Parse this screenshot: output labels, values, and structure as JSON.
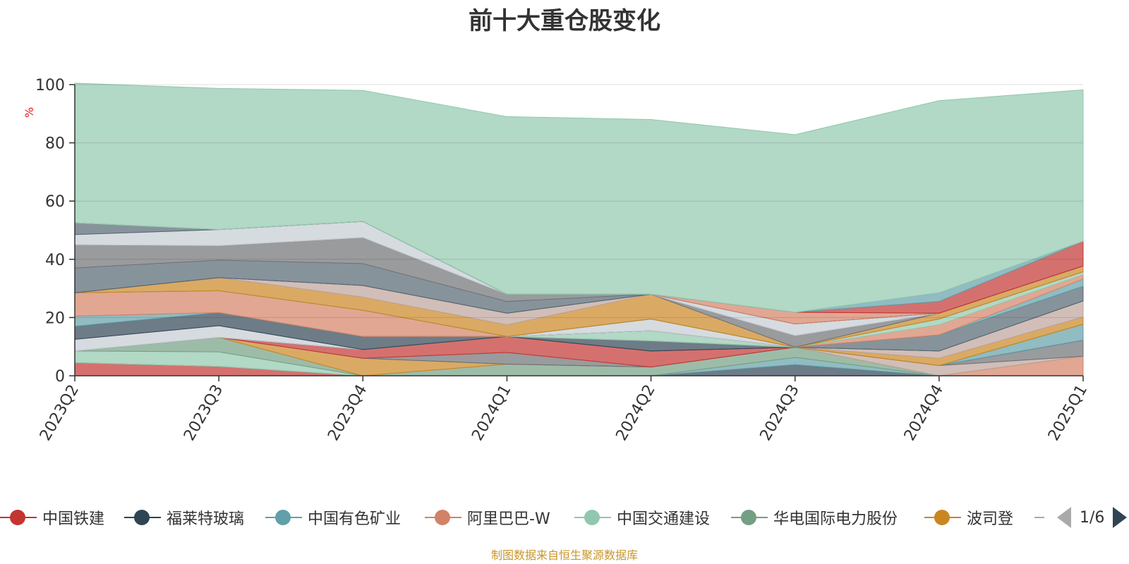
{
  "title": "前十大重仓股变化",
  "unit_label": "%",
  "footer": "制图数据来自恒生聚源数据库",
  "legend": {
    "items": [
      {
        "name": "中国铁建",
        "color": "#c23531"
      },
      {
        "name": "福莱特玻璃",
        "color": "#2f4554"
      },
      {
        "name": "中国有色矿业",
        "color": "#61a0a8"
      },
      {
        "name": "阿里巴巴-W",
        "color": "#d48265"
      },
      {
        "name": "中国交通建设",
        "color": "#91c7ae"
      },
      {
        "name": "华电国际电力股份",
        "color": "#749f83"
      },
      {
        "name": "波司登",
        "color": "#ca8622"
      }
    ],
    "page_text": "1/6"
  },
  "chart_data": {
    "type": "area",
    "stacked": true,
    "x": [
      "2023Q2",
      "2023Q3",
      "2023Q4",
      "2024Q1",
      "2024Q2",
      "2024Q3",
      "2024Q4",
      "2025Q1"
    ],
    "ylim": [
      0,
      100
    ],
    "yticks": [
      0,
      20,
      40,
      60,
      80,
      100
    ],
    "ylabel": "%",
    "grid": true,
    "series": [
      {
        "color": "#c23531",
        "values": [
          4.5,
          3.2,
          0,
          0,
          0,
          0,
          0,
          0
        ]
      },
      {
        "color": "#2f4554",
        "values": [
          0,
          0,
          0,
          0,
          0,
          3.8,
          0,
          0
        ]
      },
      {
        "color": "#61a0a8",
        "values": [
          0,
          0,
          0,
          0,
          0,
          2.5,
          0,
          0
        ]
      },
      {
        "color": "#d48265",
        "values": [
          0,
          0,
          0,
          0,
          0,
          0,
          0,
          6.7
        ]
      },
      {
        "color": "#91c7ae",
        "values": [
          4,
          5,
          0,
          0,
          0,
          0,
          0,
          0
        ]
      },
      {
        "color": "#749f83",
        "values": [
          0,
          5,
          0,
          4,
          3,
          3.5,
          0,
          0
        ]
      },
      {
        "color": "#ca8622",
        "values": [
          0,
          0,
          6,
          0,
          0,
          0,
          0,
          0
        ]
      },
      {
        "color": "#bda29a",
        "values": [
          0,
          0,
          0,
          0,
          0,
          0,
          3.5,
          0
        ]
      },
      {
        "color": "#6e7074",
        "values": [
          0,
          0,
          0,
          4,
          0,
          0,
          0,
          5.5
        ]
      },
      {
        "color": "#546570",
        "values": [
          0,
          0,
          0,
          0,
          0,
          0,
          0,
          0
        ]
      },
      {
        "color": "#c4ccd3",
        "values": [
          0,
          0,
          0,
          0,
          0,
          0,
          0,
          0
        ]
      },
      {
        "color": "#c23531",
        "values": [
          0,
          0,
          3,
          5.5,
          5.5,
          0,
          0,
          0
        ]
      },
      {
        "color": "#2f4554",
        "values": [
          0,
          0,
          0,
          0,
          3.5,
          0,
          0,
          0
        ]
      },
      {
        "color": "#61a0a8",
        "values": [
          0,
          0,
          0,
          0,
          0,
          0,
          0,
          5.5
        ]
      },
      {
        "color": "#d48265",
        "values": [
          0,
          0,
          0,
          0,
          0,
          0,
          0,
          0
        ]
      },
      {
        "color": "#91c7ae",
        "values": [
          0,
          0,
          0,
          0,
          3.5,
          0,
          0,
          0
        ]
      },
      {
        "color": "#749f83",
        "values": [
          0,
          0,
          0,
          0,
          0,
          0,
          0,
          0
        ]
      },
      {
        "color": "#ca8622",
        "values": [
          0,
          0,
          0,
          0,
          0,
          0,
          2.5,
          2.5
        ]
      },
      {
        "color": "#bda29a",
        "values": [
          0,
          0,
          0,
          0,
          0,
          0,
          2.5,
          5.5
        ]
      },
      {
        "color": "#6e7074",
        "values": [
          0,
          0,
          0,
          0,
          0,
          0,
          0,
          0
        ]
      },
      {
        "color": "#546570",
        "values": [
          0,
          0,
          0,
          0,
          0,
          0,
          5.5,
          5
        ]
      },
      {
        "color": "#c4ccd3",
        "values": [
          4,
          4,
          0,
          0,
          4,
          0,
          0,
          0
        ]
      },
      {
        "color": "#2f4554",
        "values": [
          4.5,
          4.5,
          4.5,
          0,
          0,
          0,
          0,
          0
        ]
      },
      {
        "color": "#61a0a8",
        "values": [
          3.5,
          0,
          0,
          0,
          0,
          0,
          0,
          2.5
        ]
      },
      {
        "color": "#d48265",
        "values": [
          8,
          7.5,
          9,
          0,
          0,
          0,
          3.5,
          1.5
        ]
      },
      {
        "color": "#91c7ae",
        "values": [
          0,
          0,
          0,
          0,
          0,
          0,
          2,
          1
        ]
      },
      {
        "color": "#749f83",
        "values": [
          0,
          0,
          0,
          0,
          0,
          0,
          0,
          0
        ]
      },
      {
        "color": "#ca8622",
        "values": [
          0,
          4.5,
          4.5,
          4,
          8.5,
          0,
          2,
          2
        ]
      },
      {
        "color": "#bda29a",
        "values": [
          0,
          0,
          4,
          4,
          0,
          0,
          0,
          0
        ]
      },
      {
        "color": "#6e7074",
        "values": [
          0,
          0,
          0,
          0,
          0,
          4,
          0,
          0
        ]
      },
      {
        "color": "#546570",
        "values": [
          8.5,
          6,
          7.5,
          4,
          0,
          0,
          0,
          0
        ]
      },
      {
        "color": "#c4ccd3",
        "values": [
          0,
          0,
          0,
          0,
          0,
          4,
          0,
          0
        ]
      },
      {
        "color": "#6e7074",
        "values": [
          8,
          5,
          9,
          2.5,
          0,
          0,
          0,
          0
        ]
      },
      {
        "color": "#c4ccd3",
        "values": [
          3.5,
          5.5,
          5.5,
          0,
          0,
          0,
          0,
          0
        ]
      },
      {
        "color": "#546570",
        "values": [
          4,
          0,
          0,
          0,
          0,
          0,
          0,
          0
        ]
      },
      {
        "color": "#d48265",
        "values": [
          0,
          0,
          0,
          0,
          0,
          4,
          0,
          0
        ]
      },
      {
        "color": "#c23531",
        "values": [
          0,
          0,
          0,
          0,
          0,
          0,
          4,
          8.5
        ]
      },
      {
        "color": "#61a0a8",
        "values": [
          0,
          0,
          0,
          0,
          0,
          0,
          3,
          0
        ]
      },
      {
        "color": "#91c7ae",
        "values": [
          48,
          48.5,
          45,
          61,
          60,
          61,
          66,
          52
        ]
      }
    ]
  }
}
